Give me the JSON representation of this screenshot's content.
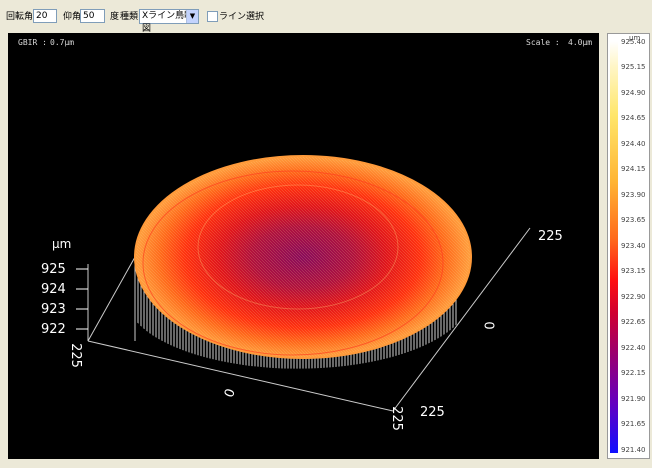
{
  "toolbar": {
    "rotation_label": "回転角",
    "rotation_value": "20",
    "elevation_label": "仰角",
    "elevation_value": "50",
    "degree_label": "度",
    "type_label": "種類",
    "type_value": "Xライン鳥瞰図",
    "line_select_label": "ライン選択",
    "line_select_checked": false
  },
  "plot": {
    "gbir_label": "GBIR :",
    "gbir_value": "0.7μm",
    "scale_label": "Scale :",
    "scale_value": "4.0μm",
    "z_unit": "μm",
    "z_ticks": [
      "925",
      "924",
      "923",
      "922"
    ],
    "corner_label_left": "225",
    "corner_label_right": "225",
    "corner_label_bottom_right": "225",
    "corner_label_front_left": "225",
    "center_label_y": "0",
    "center_label_x": "0"
  },
  "legend": {
    "unit": "μm",
    "values": [
      "925.40",
      "925.15",
      "924.90",
      "924.65",
      "924.40",
      "924.15",
      "923.90",
      "923.65",
      "923.40",
      "923.15",
      "922.90",
      "922.65",
      "922.40",
      "922.15",
      "921.90",
      "921.65",
      "921.40"
    ],
    "colors": {
      "max": "#ffffff",
      "high": "#ffe66a",
      "mid_high": "#ff6a1c",
      "mid": "#ff1010",
      "mid_low": "#9a0070",
      "min": "#1010ff"
    }
  }
}
